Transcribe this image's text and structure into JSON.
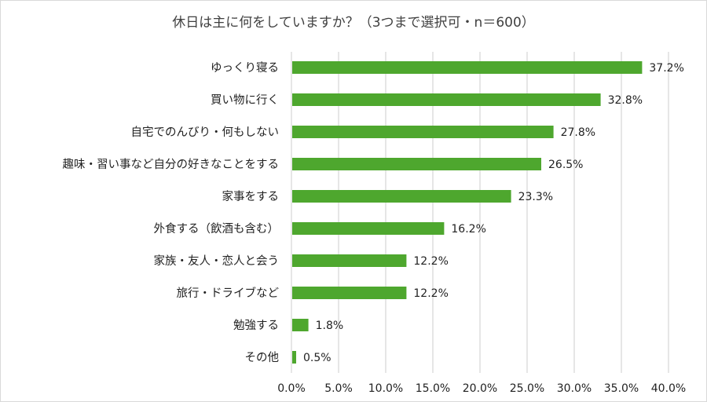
{
  "chart_data": {
    "type": "bar",
    "orientation": "horizontal",
    "title": "休日は主に何をしていますか？（3つまで選択可・n＝600）",
    "xlabel": "",
    "ylabel": "",
    "categories": [
      "ゆっくり寝る",
      "買い物に行く",
      "自宅でのんびり・何もしない",
      "趣味・習い事など自分の好きなことをする",
      "家事をする",
      "外食する（飲酒も含む）",
      "家族・友人・恋人と会う",
      "旅行・ドライブなど",
      "勉強する",
      "その他"
    ],
    "values": [
      37.2,
      32.8,
      27.8,
      26.5,
      23.3,
      16.2,
      12.2,
      12.2,
      1.8,
      0.5
    ],
    "data_labels": [
      "37.2%",
      "32.8%",
      "27.8%",
      "26.5%",
      "23.3%",
      "16.2%",
      "12.2%",
      "12.2%",
      "1.8%",
      "0.5%"
    ],
    "xlim": [
      0,
      40
    ],
    "x_ticks": [
      "0.0%",
      "5.0%",
      "10.0%",
      "15.0%",
      "20.0%",
      "25.0%",
      "30.0%",
      "35.0%",
      "40.0%"
    ],
    "grid": "vertical",
    "legend": "none",
    "bar_color": "#4ea72e",
    "grid_color": "#d9d9d9"
  }
}
